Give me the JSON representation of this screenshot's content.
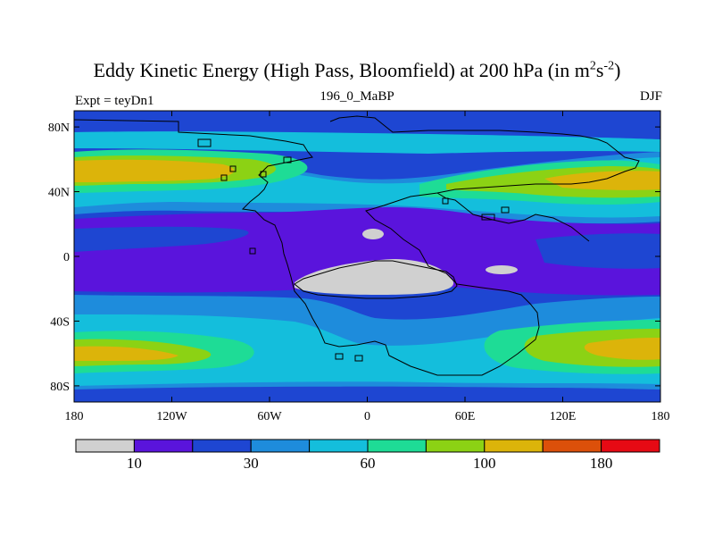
{
  "title": {
    "main_prefix": "Eddy Kinetic Energy (High Pass, Bloomfield) at 200 hPa (in m",
    "sup1": "2",
    "mid": "s",
    "sup2": "-2",
    "suffix": ")"
  },
  "subtitle": "196_0_MaBP",
  "left_label": "Expt = teyDn1",
  "right_label": "DJF",
  "axes": {
    "y_ticks": [
      {
        "label": "80N",
        "lat": 80
      },
      {
        "label": "40N",
        "lat": 40
      },
      {
        "label": "0",
        "lat": 0
      },
      {
        "label": "40S",
        "lat": -40
      },
      {
        "label": "80S",
        "lat": -80
      }
    ],
    "x_ticks": [
      {
        "label": "180",
        "lon": -180
      },
      {
        "label": "120W",
        "lon": -120
      },
      {
        "label": "60W",
        "lon": -60
      },
      {
        "label": "0",
        "lon": 0
      },
      {
        "label": "60E",
        "lon": 60
      },
      {
        "label": "120E",
        "lon": 120
      },
      {
        "label": "180",
        "lon": 180
      }
    ]
  },
  "colorbar": {
    "colors": [
      "#d0d0d0",
      "#5a14dc",
      "#1e46d2",
      "#1e8cdc",
      "#14bedc",
      "#1edc96",
      "#8cd214",
      "#dcb40a",
      "#dc500a",
      "#e60a14"
    ],
    "labels": [
      {
        "text": "10",
        "boundary": 1
      },
      {
        "text": "30",
        "boundary": 3
      },
      {
        "text": "60",
        "boundary": 5
      },
      {
        "text": "100",
        "boundary": 7
      },
      {
        "text": "180",
        "boundary": 9
      }
    ]
  }
}
